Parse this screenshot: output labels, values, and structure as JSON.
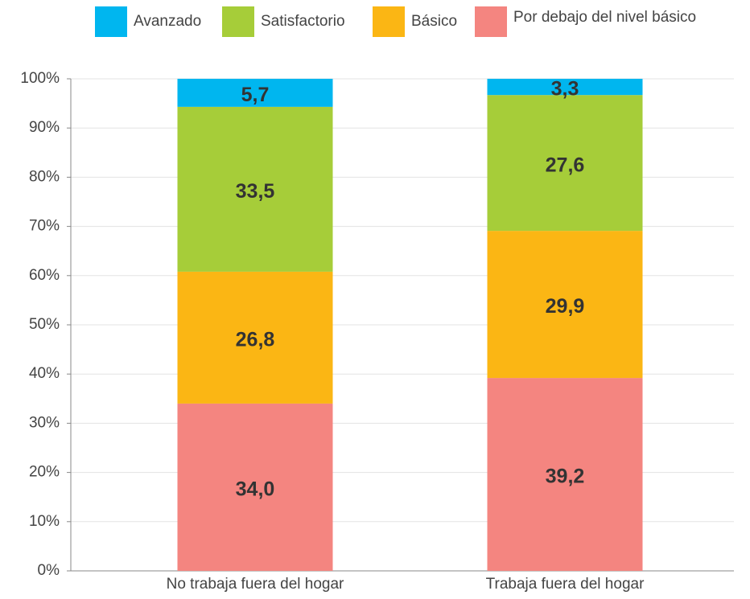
{
  "chart_data": {
    "type": "stacked-bar",
    "categories": [
      "No trabaja fuera del hogar",
      "Trabaja fuera del hogar"
    ],
    "series": [
      {
        "name": "Avanzado",
        "color": "#00b6ef",
        "values": [
          5.7,
          3.3
        ],
        "value_labels": [
          "5,7",
          "3,3"
        ]
      },
      {
        "name": "Satisfactorio",
        "color": "#a6cd39",
        "values": [
          33.5,
          27.6
        ],
        "value_labels": [
          "33,5",
          "27,6"
        ]
      },
      {
        "name": "Básico",
        "color": "#fbb614",
        "values": [
          26.8,
          29.9
        ],
        "value_labels": [
          "26,8",
          "29,9"
        ]
      },
      {
        "name": "Por debajo del nivel básico",
        "color": "#f48580",
        "values": [
          34.0,
          39.2
        ],
        "value_labels": [
          "34,0",
          "39,2"
        ]
      }
    ],
    "ylim": [
      0,
      100
    ],
    "yticks": [
      {
        "value": 0,
        "label": "0%"
      },
      {
        "value": 10,
        "label": "10%"
      },
      {
        "value": 20,
        "label": "20%"
      },
      {
        "value": 30,
        "label": "30%"
      },
      {
        "value": 40,
        "label": "40%"
      },
      {
        "value": 50,
        "label": "50%"
      },
      {
        "value": 60,
        "label": "60%"
      },
      {
        "value": 70,
        "label": "70%"
      },
      {
        "value": 80,
        "label": "80%"
      },
      {
        "value": 90,
        "label": "90%"
      },
      {
        "value": 100,
        "label": "100%"
      }
    ],
    "grid": true
  }
}
